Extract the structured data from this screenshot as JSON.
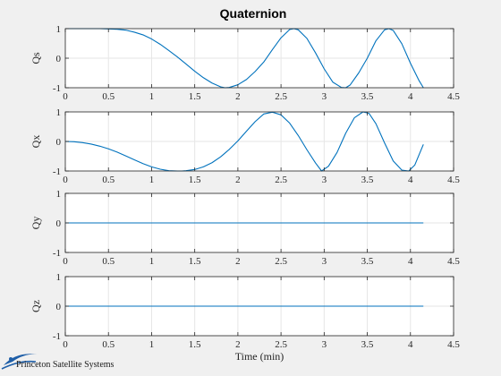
{
  "figure": {
    "title": "Quaternion",
    "background": "#f0f0f0",
    "axes_background": "#ffffff",
    "line_color": "#0072bd",
    "grid_color": "#e6e6e6"
  },
  "logo": {
    "text": "Princeton Satellite Systems",
    "icon": "satellite-orbit-swoosh-icon",
    "color": "#1f5fa8"
  },
  "chart_data": [
    {
      "type": "line",
      "title": "Quaternion",
      "ylabel": "Qs",
      "xlabel": "",
      "xlim": [
        0,
        4.5
      ],
      "ylim": [
        -1,
        1
      ],
      "xticks": [
        "0",
        "0.5",
        "1",
        "1.5",
        "2",
        "2.5",
        "3",
        "3.5",
        "4",
        "4.5"
      ],
      "yticks": [
        "-1",
        "0",
        "1"
      ],
      "grid": true,
      "series": [
        {
          "x": [
            0,
            0.1,
            0.2,
            0.3,
            0.4,
            0.5,
            0.6,
            0.7,
            0.8,
            0.9,
            1.0,
            1.1,
            1.2,
            1.3,
            1.4,
            1.5,
            1.6,
            1.7,
            1.8,
            1.85,
            1.9,
            2.0,
            2.1,
            2.2,
            2.3,
            2.4,
            2.5,
            2.6,
            2.65,
            2.7,
            2.8,
            2.9,
            3.0,
            3.1,
            3.2,
            3.25,
            3.3,
            3.4,
            3.5,
            3.6,
            3.7,
            3.75,
            3.8,
            3.9,
            4.0,
            4.1,
            4.15
          ],
          "y": [
            1.0,
            1.0,
            1.0,
            1.0,
            1.0,
            0.99,
            0.98,
            0.95,
            0.88,
            0.79,
            0.65,
            0.47,
            0.26,
            0.04,
            -0.2,
            -0.44,
            -0.66,
            -0.84,
            -0.97,
            -1.0,
            -0.99,
            -0.9,
            -0.72,
            -0.45,
            -0.13,
            0.29,
            0.69,
            0.97,
            1.0,
            0.96,
            0.67,
            0.18,
            -0.36,
            -0.81,
            -0.99,
            -1.0,
            -0.91,
            -0.5,
            0.0,
            0.59,
            0.96,
            1.0,
            0.94,
            0.49,
            -0.17,
            -0.76,
            -1.0
          ]
        }
      ]
    },
    {
      "type": "line",
      "ylabel": "Qx",
      "xlabel": "",
      "xlim": [
        0,
        4.5
      ],
      "ylim": [
        -1,
        1
      ],
      "xticks": [
        "0",
        "0.5",
        "1",
        "1.5",
        "2",
        "2.5",
        "3",
        "3.5",
        "4",
        "4.5"
      ],
      "yticks": [
        "-1",
        "0",
        "1"
      ],
      "grid": true,
      "series": [
        {
          "x": [
            0,
            0.1,
            0.2,
            0.3,
            0.4,
            0.5,
            0.6,
            0.7,
            0.8,
            0.9,
            1.0,
            1.1,
            1.2,
            1.3,
            1.35,
            1.4,
            1.5,
            1.6,
            1.7,
            1.8,
            1.9,
            2.0,
            2.1,
            2.2,
            2.3,
            2.4,
            2.5,
            2.6,
            2.7,
            2.8,
            2.9,
            2.97,
            3.05,
            3.15,
            3.25,
            3.35,
            3.45,
            3.52,
            3.6,
            3.7,
            3.8,
            3.9,
            3.98,
            4.05,
            4.15
          ],
          "y": [
            0.0,
            -0.01,
            -0.04,
            -0.09,
            -0.16,
            -0.25,
            -0.36,
            -0.49,
            -0.62,
            -0.75,
            -0.86,
            -0.94,
            -0.99,
            -1.0,
            -1.0,
            -0.99,
            -0.95,
            -0.86,
            -0.72,
            -0.52,
            -0.27,
            0.02,
            0.35,
            0.67,
            0.93,
            0.99,
            0.9,
            0.62,
            0.2,
            -0.28,
            -0.73,
            -1.0,
            -0.84,
            -0.37,
            0.28,
            0.8,
            1.0,
            0.95,
            0.6,
            -0.05,
            -0.66,
            -0.97,
            -1.0,
            -0.8,
            -0.1
          ]
        }
      ]
    },
    {
      "type": "line",
      "ylabel": "Qy",
      "xlabel": "",
      "xlim": [
        0,
        4.5
      ],
      "ylim": [
        -1,
        1
      ],
      "xticks": [
        "0",
        "0.5",
        "1",
        "1.5",
        "2",
        "2.5",
        "3",
        "3.5",
        "4",
        "4.5"
      ],
      "yticks": [
        "-1",
        "0",
        "1"
      ],
      "grid": true,
      "series": [
        {
          "x": [
            0,
            4.15
          ],
          "y": [
            0,
            0
          ]
        }
      ]
    },
    {
      "type": "line",
      "ylabel": "Qz",
      "xlabel": "Time (min)",
      "xlim": [
        0,
        4.5
      ],
      "ylim": [
        -1,
        1
      ],
      "xticks": [
        "0",
        "0.5",
        "1",
        "1.5",
        "2",
        "2.5",
        "3",
        "3.5",
        "4",
        "4.5"
      ],
      "yticks": [
        "-1",
        "0",
        "1"
      ],
      "grid": true,
      "series": [
        {
          "x": [
            0,
            4.15
          ],
          "y": [
            0,
            0
          ]
        }
      ]
    }
  ]
}
